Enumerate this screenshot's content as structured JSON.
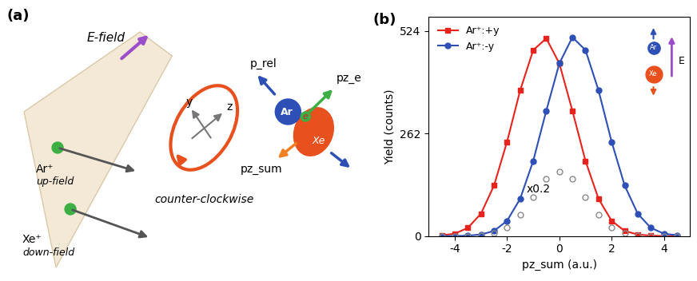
{
  "diagram": {
    "label": "(a)",
    "texts": {
      "efield": "E-field",
      "ar_ion": "Ar⁺",
      "ar_pos": "up-field",
      "xe_ion": "Xe⁺",
      "xe_pos": "down-field",
      "y": "y",
      "z": "z",
      "rotation": "counter-clockwise",
      "prel": "p_rel",
      "ar": "Ar",
      "e": "e",
      "xe": "Xe",
      "pze": "pz_e",
      "pzsum": "pz_sum"
    }
  },
  "chart_data": {
    "type": "scatter",
    "panel_label": "(b)",
    "x_label": "pz_sum (a.u.)",
    "y_label": "Yield (counts)",
    "x": [
      -4.5,
      -4.0,
      -3.5,
      -3.0,
      -2.5,
      -2.0,
      -1.5,
      -1.0,
      -0.5,
      0.0,
      0.5,
      1.0,
      1.5,
      2.0,
      2.5,
      3.0,
      3.5,
      4.0,
      4.5
    ],
    "series": [
      {
        "name": "Ar⁺:+y",
        "color": "#e8231e",
        "marker": "square",
        "line_style": "solid",
        "values": [
          2,
          6,
          21,
          57,
          129,
          241,
          372,
          475,
          505,
          441,
          320,
          192,
          95,
          39,
          13,
          4,
          1,
          0,
          0
        ]
      },
      {
        "name": "Ar⁺:-y",
        "color": "#2e4fb5",
        "marker": "circle",
        "line_style": "solid",
        "values": [
          0,
          0,
          1,
          4,
          13,
          39,
          95,
          192,
          320,
          441,
          508,
          475,
          372,
          241,
          129,
          57,
          21,
          6,
          2
        ]
      },
      {
        "name": "x0.2",
        "color": "#8a8a8a",
        "marker": "open circle",
        "line_style": "none",
        "values": [
          0,
          0,
          0,
          2,
          7,
          22,
          54,
          100,
          146,
          165,
          146,
          100,
          54,
          22,
          7,
          2,
          0,
          0,
          0
        ]
      }
    ],
    "xlim": [
      -5,
      5
    ],
    "ylim": [
      0,
      560
    ],
    "xticks": [
      -4,
      -2,
      0,
      2,
      4
    ],
    "yticks": [
      0,
      262,
      524
    ],
    "legend": "upper left",
    "annotations": {
      "scale": "x0.2",
      "ar": "Ar",
      "xe": "Xe",
      "field": "E"
    }
  }
}
